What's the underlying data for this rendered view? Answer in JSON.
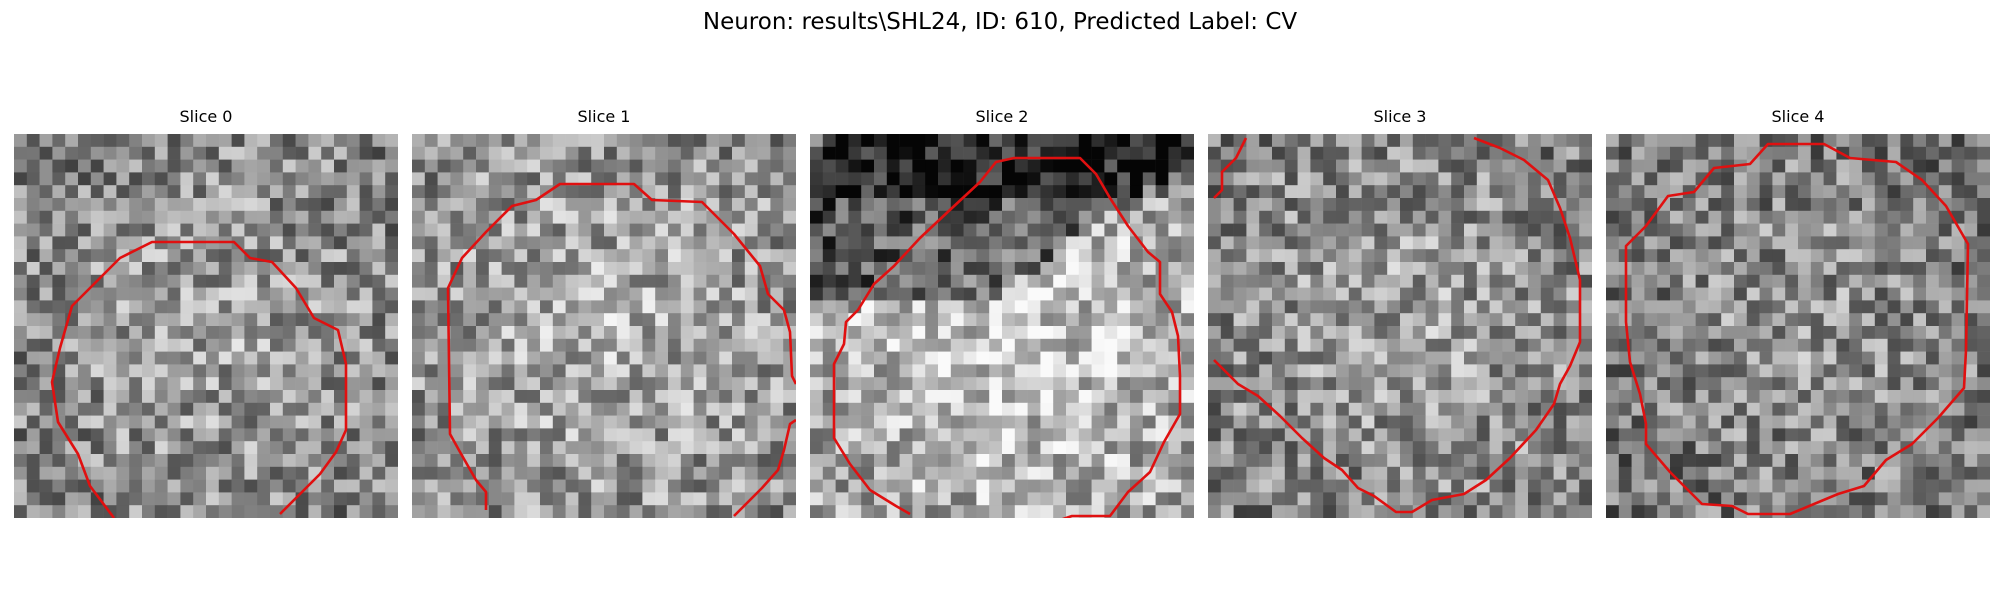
{
  "figure": {
    "title": "Neuron: results\\SHL24, ID: 610, Predicted Label: CV",
    "contour_color": "#e01010",
    "colormap": "grayscale",
    "panels": [
      {
        "title": "Slice 0",
        "brightness": 0.55,
        "dark_band": false,
        "contour": "open-bottom"
      },
      {
        "title": "Slice 1",
        "brightness": 0.6,
        "dark_band": false,
        "contour": "open-bottom"
      },
      {
        "title": "Slice 2",
        "brightness": 0.7,
        "dark_band": true,
        "contour": "open-bottom"
      },
      {
        "title": "Slice 3",
        "brightness": 0.55,
        "dark_band": false,
        "contour": "open-left"
      },
      {
        "title": "Slice 4",
        "brightness": 0.5,
        "dark_band": false,
        "contour": "closed"
      }
    ]
  }
}
